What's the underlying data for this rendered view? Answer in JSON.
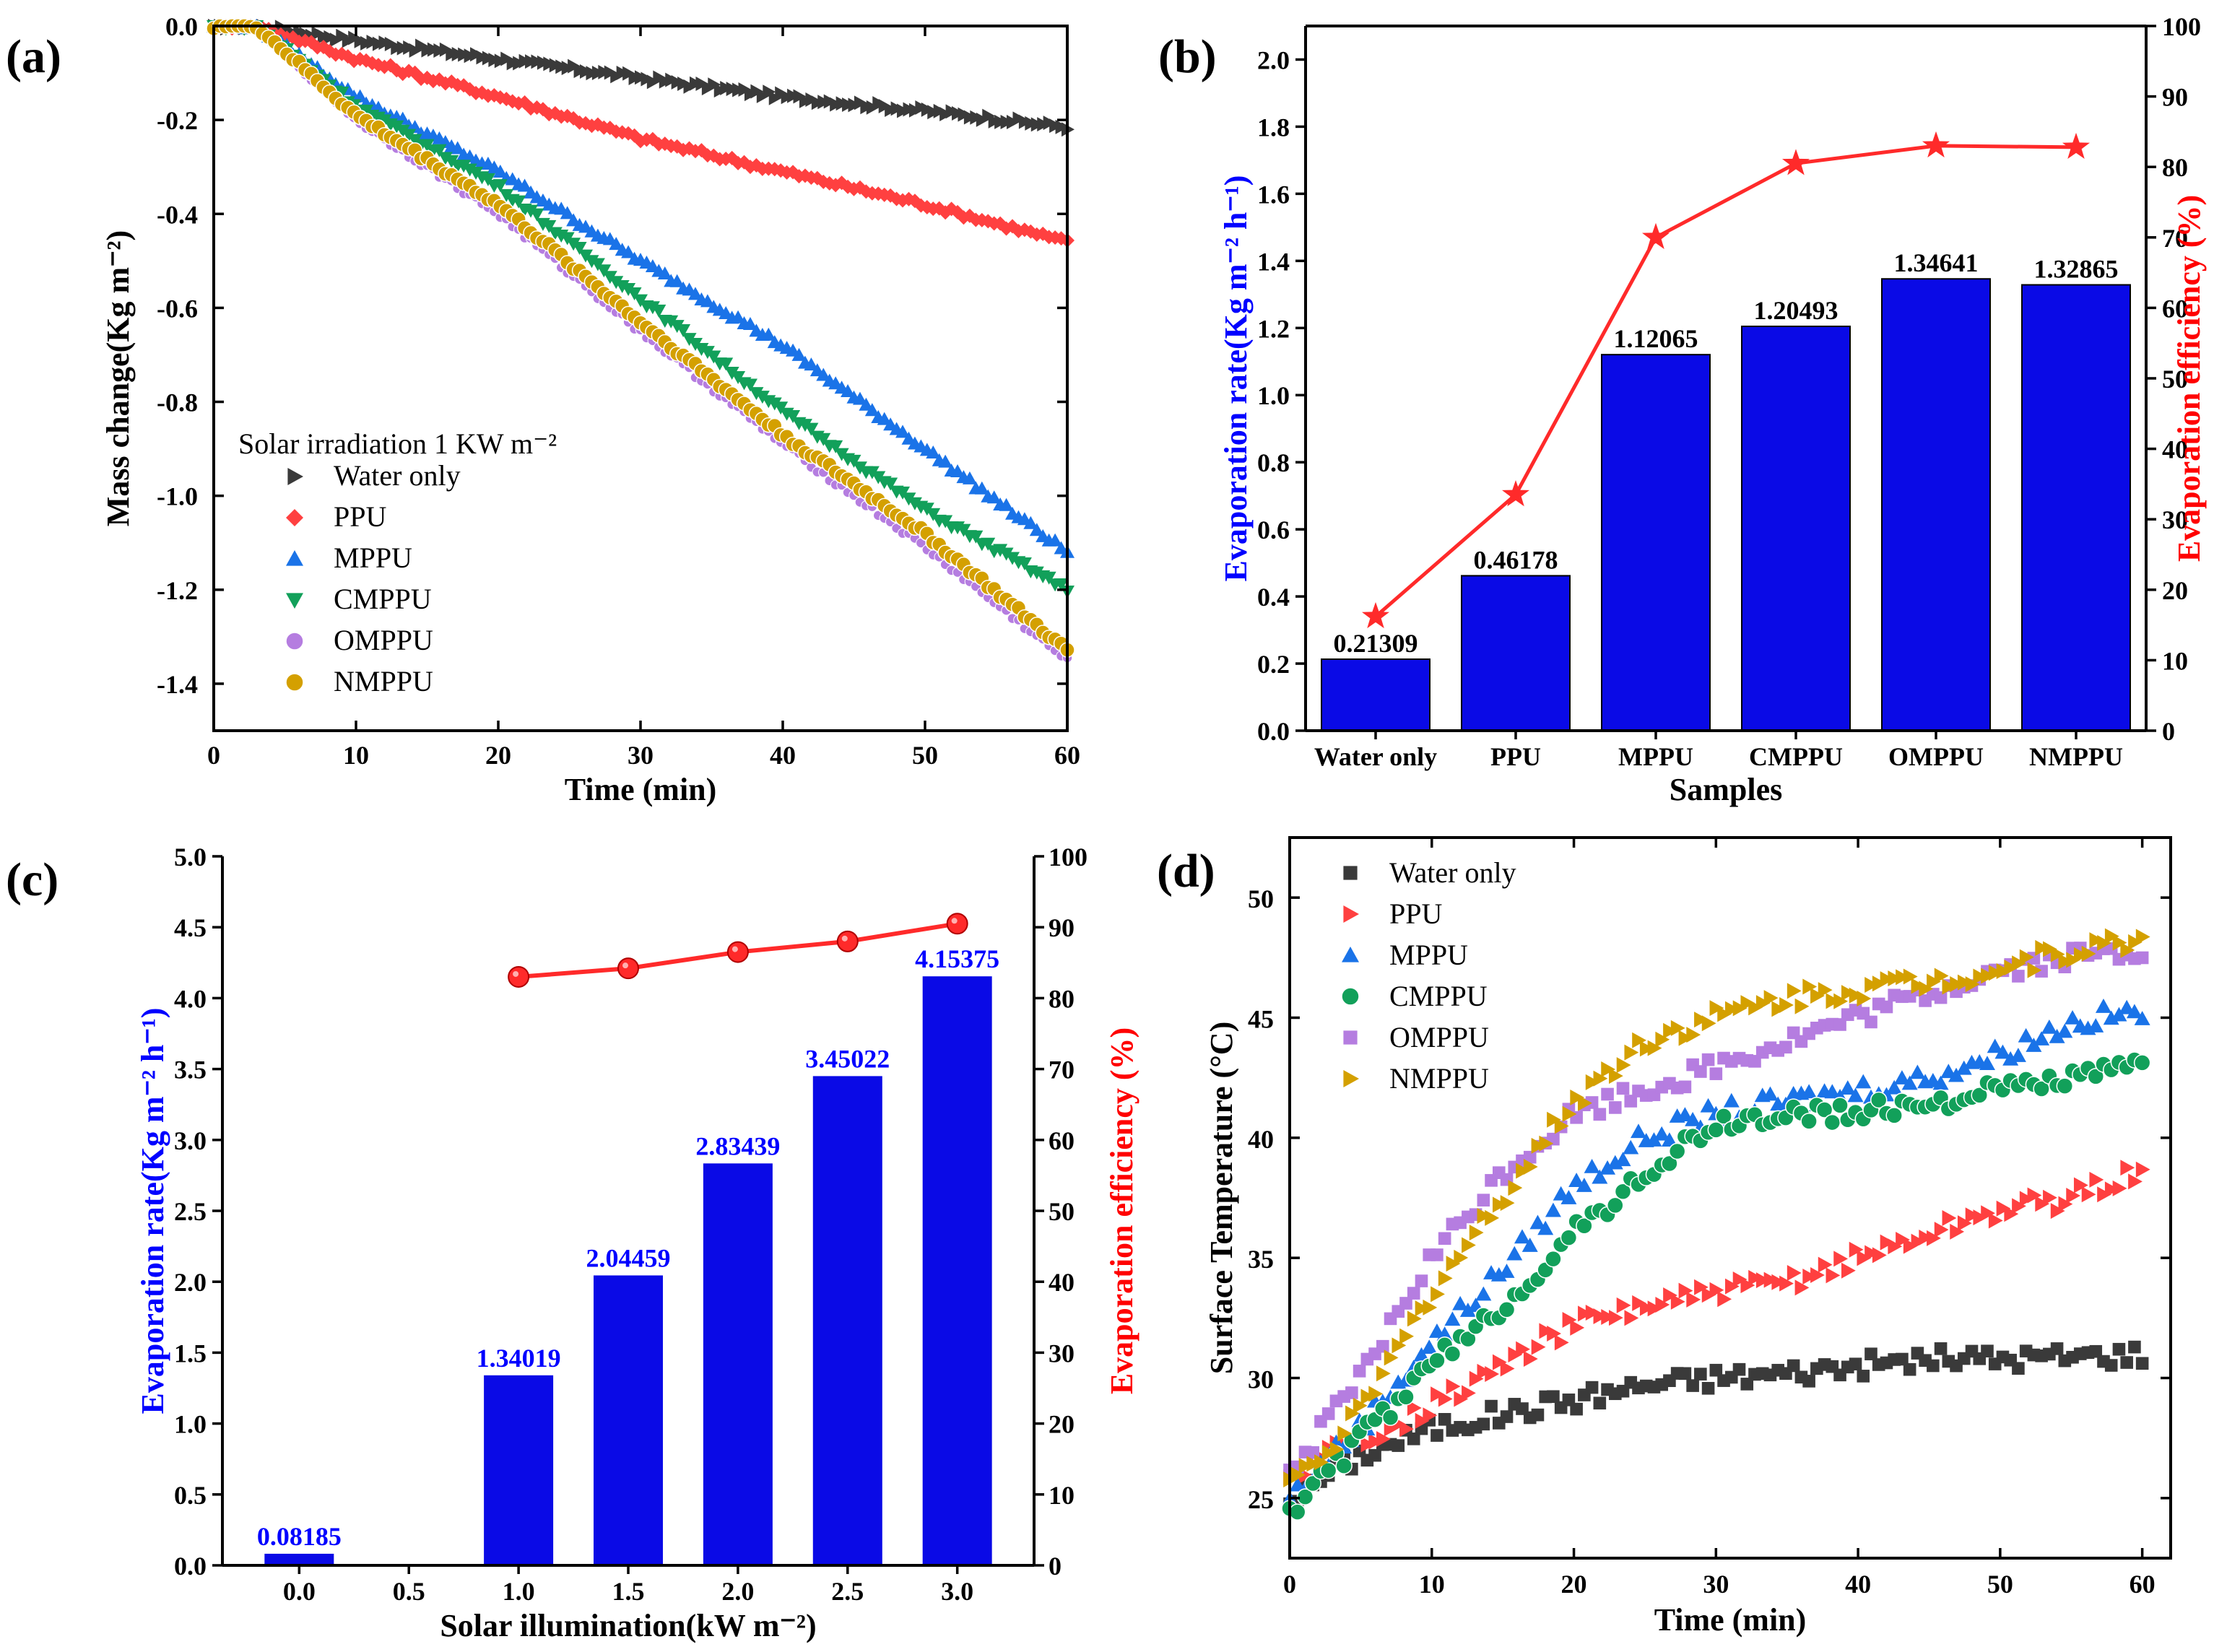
{
  "colors": {
    "water_only": "#3a3a3a",
    "ppu": "#ff4040",
    "mppu": "#1a73e8",
    "cmppu": "#12a05a",
    "omppu": "#b57de0",
    "nmppu": "#d4a000",
    "bar_blue": "#0a0ae6",
    "eff_red": "#ff2a2a",
    "ticks_blue": "#0000ff",
    "ticks_red": "#ff0000"
  },
  "chart_data": [
    {
      "panel": "(a)",
      "type": "scatter",
      "title": "",
      "xlabel": "Time (min)",
      "ylabel": "Mass change(Kg m⁻²)",
      "xlim": [
        0,
        60
      ],
      "ylim": [
        -1.5,
        0
      ],
      "xticks": [
        "0",
        "10",
        "20",
        "30",
        "40",
        "50",
        "60"
      ],
      "yticks": [
        "0.0",
        "-0.2",
        "-0.4",
        "-0.6",
        "-0.8",
        "-1.0",
        "-1.2",
        "-1.4"
      ],
      "legend_title": "Solar irradiation 1 KW m⁻²",
      "series": [
        {
          "name": "Water only",
          "marker": "tri-right",
          "x": [
            0,
            3,
            10,
            20,
            30,
            40,
            50,
            60
          ],
          "y": [
            0,
            0,
            -0.03,
            -0.07,
            -0.11,
            -0.15,
            -0.18,
            -0.215
          ]
        },
        {
          "name": "PPU",
          "marker": "diamond",
          "x": [
            0,
            3,
            10,
            20,
            30,
            40,
            50,
            60
          ],
          "y": [
            0,
            0,
            -0.07,
            -0.15,
            -0.24,
            -0.31,
            -0.38,
            -0.46
          ]
        },
        {
          "name": "MPPU",
          "marker": "tri-up",
          "x": [
            0,
            3,
            10,
            20,
            30,
            40,
            50,
            60
          ],
          "y": [
            0,
            0,
            -0.15,
            -0.31,
            -0.5,
            -0.68,
            -0.9,
            -1.12
          ]
        },
        {
          "name": "CMPPU",
          "marker": "tri-down",
          "x": [
            0,
            3,
            10,
            20,
            30,
            40,
            50,
            60
          ],
          "y": [
            0,
            0,
            -0.17,
            -0.34,
            -0.58,
            -0.82,
            -1.03,
            -1.2
          ]
        },
        {
          "name": "OMPPU",
          "marker": "circle-small",
          "x": [
            0,
            3,
            10,
            20,
            30,
            40,
            50,
            60
          ],
          "y": [
            0,
            0,
            -0.2,
            -0.4,
            -0.65,
            -0.89,
            -1.11,
            -1.35
          ]
        },
        {
          "name": "NMPPU",
          "marker": "circle",
          "x": [
            0,
            3,
            10,
            20,
            30,
            40,
            50,
            60
          ],
          "y": [
            0,
            0,
            -0.19,
            -0.38,
            -0.63,
            -0.87,
            -1.08,
            -1.33
          ]
        }
      ]
    },
    {
      "panel": "(b)",
      "type": "bar",
      "xlabel": "Samples",
      "ylabel": "Evaporation rate(Kg m⁻² h⁻¹)",
      "y2label": "Evaporation efficiency (%)",
      "ylim": [
        0,
        2.1
      ],
      "y2lim": [
        0,
        100
      ],
      "yticks": [
        "0.0",
        "0.2",
        "0.4",
        "0.6",
        "0.8",
        "1.0",
        "1.2",
        "1.4",
        "1.6",
        "1.8",
        "2.0"
      ],
      "y2ticks": [
        "0",
        "10",
        "20",
        "30",
        "40",
        "50",
        "60",
        "70",
        "80",
        "90",
        "100"
      ],
      "categories": [
        "Water only",
        "PPU",
        "MPPU",
        "CMPPU",
        "OMPPU",
        "NMPPU"
      ],
      "values": [
        0.21309,
        0.46178,
        1.12065,
        1.20493,
        1.34641,
        1.32865
      ],
      "value_labels": [
        "0.21309",
        "0.46178",
        "1.12065",
        "1.20493",
        "1.34641",
        "1.32865"
      ],
      "efficiency": [
        16.2,
        33.5,
        70.0,
        80.5,
        83.0,
        82.8
      ]
    },
    {
      "panel": "(c)",
      "type": "bar",
      "xlabel": "Solar illumination(kW m⁻²)",
      "ylabel": "Evaporation rate(Kg m⁻² h⁻¹)",
      "y2label": "Evaporation efficiency (%)",
      "xlim": [
        -0.35,
        3.35
      ],
      "ylim": [
        0,
        5.0
      ],
      "y2lim": [
        0,
        100
      ],
      "xticks": [
        "0.0",
        "0.5",
        "1.0",
        "1.5",
        "2.0",
        "2.5",
        "3.0"
      ],
      "yticks": [
        "0.0",
        "0.5",
        "1.0",
        "1.5",
        "2.0",
        "2.5",
        "3.0",
        "3.5",
        "4.0",
        "4.5",
        "5.0"
      ],
      "y2ticks": [
        "0",
        "10",
        "20",
        "30",
        "40",
        "50",
        "60",
        "70",
        "80",
        "90",
        "100"
      ],
      "x": [
        0.0,
        1.0,
        1.5,
        2.0,
        2.5,
        3.0
      ],
      "values": [
        0.08185,
        1.34019,
        2.04459,
        2.83439,
        3.45022,
        4.15375
      ],
      "value_labels": [
        "0.08185",
        "1.34019",
        "2.04459",
        "2.83439",
        "3.45022",
        "4.15375"
      ],
      "efficiency_x": [
        1.0,
        1.5,
        2.0,
        2.5,
        3.0
      ],
      "efficiency": [
        83.0,
        84.2,
        86.5,
        88.0,
        90.5
      ]
    },
    {
      "panel": "(d)",
      "type": "scatter",
      "xlabel": "Time (min)",
      "ylabel": "Surface Temperature (°C)",
      "xlim": [
        0,
        62
      ],
      "ylim": [
        22.5,
        52.5
      ],
      "xticks": [
        "0",
        "10",
        "20",
        "30",
        "40",
        "50",
        "60"
      ],
      "yticks": [
        "25",
        "30",
        "35",
        "40",
        "45",
        "50"
      ],
      "series": [
        {
          "name": "Water only",
          "marker": "square",
          "x": [
            0,
            5,
            10,
            15,
            20,
            25,
            30,
            35,
            40,
            45,
            50,
            55,
            60
          ],
          "y": [
            25,
            26.8,
            27.9,
            28.5,
            29.1,
            29.7,
            30.0,
            30.2,
            30.5,
            30.8,
            30.8,
            30.9,
            31.0
          ]
        },
        {
          "name": "PPU",
          "marker": "tri-right",
          "x": [
            0,
            5,
            10,
            15,
            20,
            25,
            30,
            35,
            40,
            45,
            50,
            55,
            60
          ],
          "y": [
            26,
            27.5,
            28.8,
            30.5,
            32.2,
            33.0,
            33.5,
            34.0,
            35.0,
            36.0,
            37.0,
            37.5,
            38.6
          ]
        },
        {
          "name": "MPPU",
          "marker": "tri-up",
          "x": [
            0,
            5,
            10,
            15,
            20,
            25,
            30,
            35,
            40,
            45,
            50,
            55,
            60
          ],
          "y": [
            25,
            28.0,
            31.5,
            34.5,
            38.0,
            40.0,
            41.0,
            41.5,
            42.0,
            42.5,
            43.5,
            44.8,
            45.3
          ]
        },
        {
          "name": "CMPPU",
          "marker": "circle",
          "x": [
            0,
            5,
            10,
            15,
            20,
            25,
            30,
            35,
            40,
            45,
            50,
            55,
            60
          ],
          "y": [
            24.5,
            27.5,
            30.5,
            33.0,
            36.0,
            38.5,
            40.5,
            41.0,
            41.0,
            41.5,
            42.0,
            42.5,
            43.0
          ]
        },
        {
          "name": "OMPPU",
          "marker": "square",
          "x": [
            0,
            5,
            10,
            15,
            20,
            25,
            30,
            35,
            40,
            45,
            50,
            55,
            60
          ],
          "y": [
            26,
            30.0,
            35.0,
            38.5,
            41.0,
            42.0,
            43.0,
            44.0,
            45.0,
            46.0,
            47.0,
            47.5,
            47.8
          ]
        },
        {
          "name": "NMPPU",
          "marker": "tri-right",
          "x": [
            0,
            5,
            10,
            15,
            20,
            25,
            30,
            35,
            40,
            45,
            50,
            55,
            60
          ],
          "y": [
            25.5,
            28.5,
            33.5,
            37.5,
            41.5,
            44.0,
            45.0,
            45.8,
            46.2,
            46.5,
            47.0,
            47.8,
            48.2
          ]
        }
      ]
    }
  ]
}
